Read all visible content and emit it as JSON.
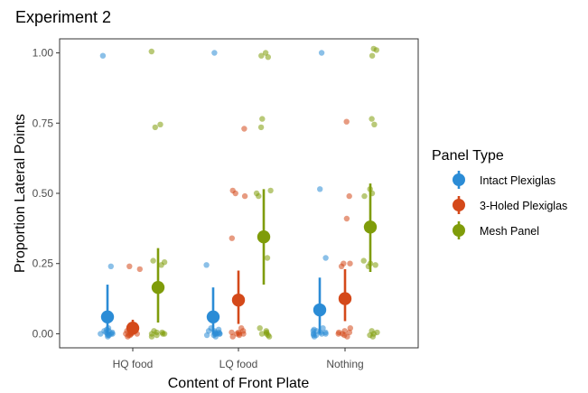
{
  "chart_data": {
    "type": "scatter",
    "title": "Experiment 2",
    "xlabel": "Content of Front Plate",
    "ylabel": "Proportion Lateral Points",
    "categories": [
      "HQ food",
      "LQ food",
      "Nothing"
    ],
    "y_ticks": [
      "0.00",
      "0.25",
      "0.50",
      "0.75",
      "1.00"
    ],
    "ylim": [
      -0.05,
      1.05
    ],
    "grid": false,
    "legend": {
      "title": "Panel Type",
      "placement": "right"
    },
    "series": [
      {
        "name": "Intact Plexiglas",
        "color": "#2b8cd6",
        "summary": [
          {
            "category": "HQ food",
            "mean": 0.06,
            "low": 0.0,
            "high": 0.175
          },
          {
            "category": "LQ food",
            "mean": 0.06,
            "low": 0.0,
            "high": 0.165
          },
          {
            "category": "Nothing",
            "mean": 0.085,
            "low": 0.0,
            "high": 0.2
          }
        ],
        "points": [
          {
            "category": "HQ food",
            "y": [
              0.99,
              0.24,
              0.02,
              0.015,
              0.01,
              0.005,
              0.0,
              0.0,
              -0.005,
              -0.01,
              0.0,
              0.01,
              -0.005,
              0.005,
              0.0
            ]
          },
          {
            "category": "LQ food",
            "y": [
              1.0,
              0.245,
              0.02,
              0.015,
              0.01,
              0.005,
              0.0,
              0.0,
              -0.005,
              -0.01,
              0.0,
              0.01,
              -0.005,
              0.005,
              0.0,
              0.0
            ]
          },
          {
            "category": "Nothing",
            "y": [
              1.0,
              0.515,
              0.27,
              0.02,
              0.015,
              0.01,
              0.005,
              0.0,
              0.0,
              -0.005,
              -0.01,
              0.0,
              0.01,
              -0.005,
              0.005
            ]
          }
        ]
      },
      {
        "name": "3-Holed Plexiglas",
        "color": "#d4491a",
        "summary": [
          {
            "category": "HQ food",
            "mean": 0.02,
            "low": 0.0,
            "high": 0.05
          },
          {
            "category": "LQ food",
            "mean": 0.12,
            "low": 0.035,
            "high": 0.225
          },
          {
            "category": "Nothing",
            "mean": 0.125,
            "low": 0.045,
            "high": 0.23
          }
        ],
        "points": [
          {
            "category": "HQ food",
            "y": [
              0.24,
              0.23,
              0.01,
              0.005,
              0.0,
              0.0,
              -0.005,
              -0.01,
              0.0,
              0.005,
              0.0,
              -0.005
            ]
          },
          {
            "category": "LQ food",
            "y": [
              0.73,
              0.51,
              0.49,
              0.5,
              0.34,
              0.02,
              0.01,
              0.005,
              0.0,
              0.0,
              -0.005,
              -0.01,
              0.0,
              0.005
            ]
          },
          {
            "category": "Nothing",
            "y": [
              0.755,
              0.49,
              0.41,
              0.25,
              0.24,
              0.25,
              0.02,
              0.01,
              0.005,
              0.0,
              0.0,
              -0.005,
              -0.01,
              0.005
            ]
          }
        ]
      },
      {
        "name": "Mesh Panel",
        "color": "#7f9c0a",
        "summary": [
          {
            "category": "HQ food",
            "mean": 0.165,
            "low": 0.04,
            "high": 0.305
          },
          {
            "category": "LQ food",
            "mean": 0.345,
            "low": 0.175,
            "high": 0.515
          },
          {
            "category": "Nothing",
            "mean": 0.38,
            "low": 0.22,
            "high": 0.535
          }
        ],
        "points": [
          {
            "category": "HQ food",
            "y": [
              1.005,
              0.745,
              0.735,
              0.26,
              0.255,
              0.245,
              0.01,
              0.005,
              0.0,
              0.0,
              -0.005,
              -0.01,
              0.0,
              0.005
            ]
          },
          {
            "category": "LQ food",
            "y": [
              1.0,
              0.99,
              0.985,
              0.765,
              0.735,
              0.5,
              0.49,
              0.51,
              0.27,
              0.02,
              0.01,
              0.005,
              0.0,
              0.0,
              -0.005,
              -0.01
            ]
          },
          {
            "category": "Nothing",
            "y": [
              1.015,
              1.01,
              0.99,
              0.765,
              0.745,
              0.515,
              0.5,
              0.49,
              0.25,
              0.245,
              0.24,
              0.26,
              0.01,
              0.005,
              0.0,
              -0.005,
              -0.01
            ]
          }
        ]
      }
    ]
  }
}
